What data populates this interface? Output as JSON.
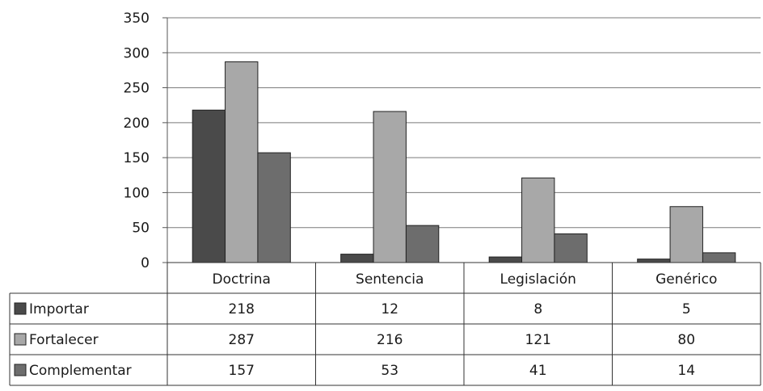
{
  "chart_data": {
    "type": "bar",
    "categories": [
      "Doctrina",
      "Sentencia",
      "Legislación",
      "Genérico"
    ],
    "series": [
      {
        "name": "Importar",
        "values": [
          218,
          12,
          8,
          5
        ],
        "color": "#4a4a4a"
      },
      {
        "name": "Fortalecer",
        "values": [
          287,
          216,
          121,
          80
        ],
        "color": "#a8a8a8"
      },
      {
        "name": "Complementar",
        "values": [
          157,
          53,
          41,
          14
        ],
        "color": "#6d6d6d"
      }
    ],
    "ylim": [
      0,
      350
    ],
    "yticks": [
      "0",
      "50",
      "100",
      "150",
      "200",
      "250",
      "300",
      "350"
    ],
    "grid": true,
    "legend": "data-table",
    "data_table": true
  }
}
